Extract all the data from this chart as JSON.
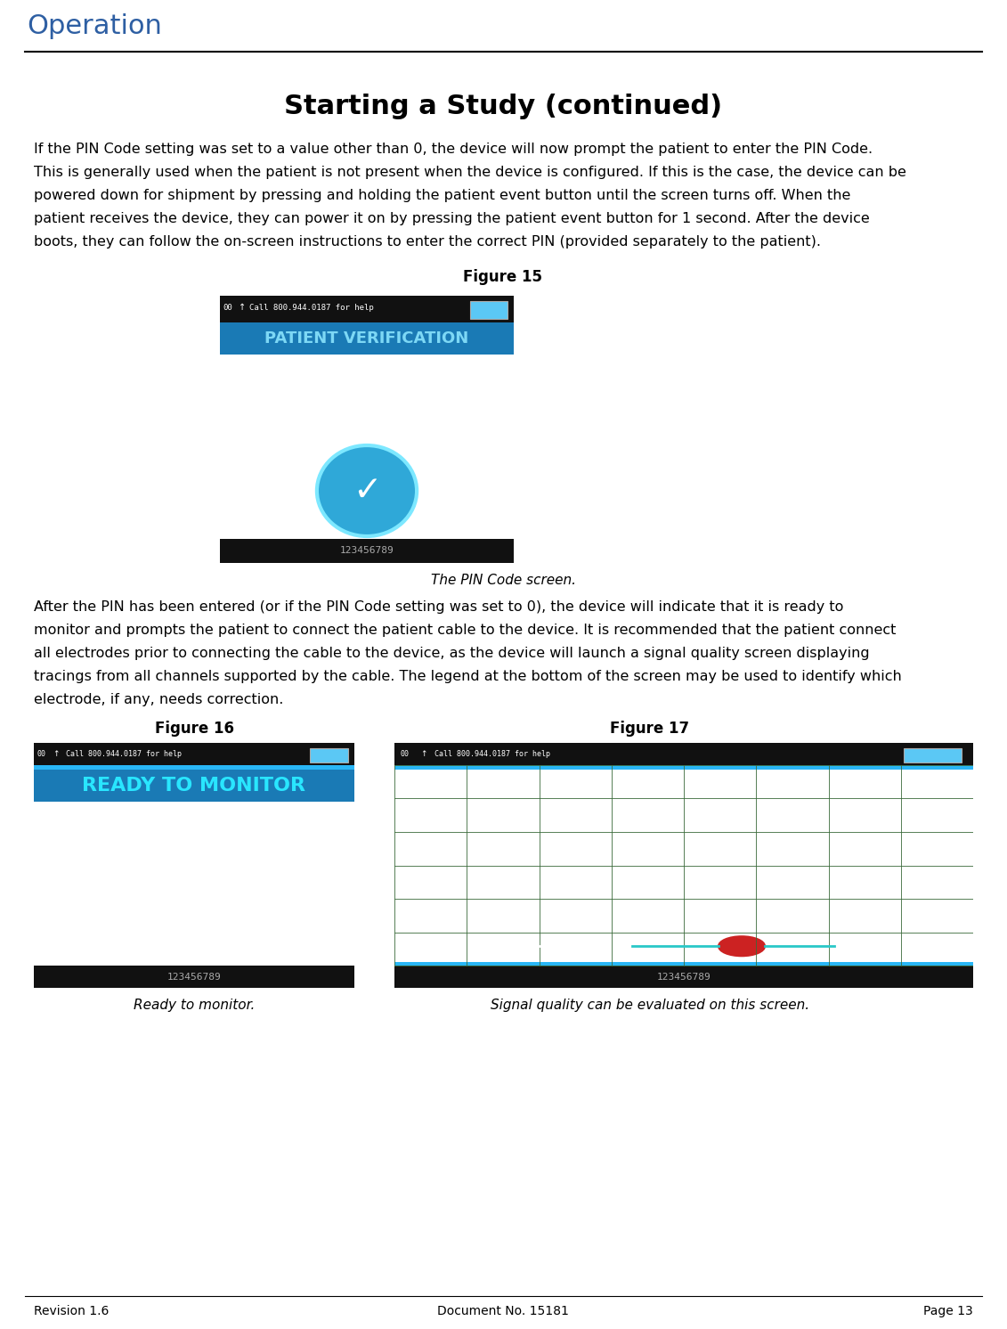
{
  "title": "Starting a Study (continued)",
  "header_text": "Operation",
  "header_color": "#2E5FA3",
  "body_text_1": "If the PIN Code setting was set to a value other than 0, the device will now prompt the patient to enter the PIN Code.\nThis is generally used when the patient is not present when the device is configured. If this is the case, the device can be\npowered down for shipment by pressing and holding the patient event button until the screen turns off. When the\npatient receives the device, they can power it on by pressing the patient event button for 1 second. After the device\nboots, they can follow the on-screen instructions to enter the correct PIN (provided separately to the patient).",
  "fig15_label": "Figure 15",
  "fig15_caption": "The PIN Code screen.",
  "body_text_2": "After the PIN has been entered (or if the PIN Code setting was set to 0), the device will indicate that it is ready to\nmonitor and prompts the patient to connect the patient cable to the device. It is recommended that the patient connect\nall electrodes prior to connecting the cable to the device, as the device will launch a signal quality screen displaying\ntracings from all channels supported by the cable. The legend at the bottom of the screen may be used to identify which\nelectrode, if any, needs correction.",
  "fig16_label": "Figure 16",
  "fig17_label": "Figure 17",
  "fig16_caption": "Ready to monitor.",
  "fig17_caption": "Signal quality can be evaluated on this screen.",
  "footer_left": "Revision 1.6",
  "footer_center": "Document No. 15181",
  "footer_right": "Page 13",
  "bg_color": "#FFFFFF",
  "text_color": "#000000",
  "blue_color": "#29b6f6",
  "screen_bg": "#000000",
  "status_bar_color": "#1a1a1a"
}
